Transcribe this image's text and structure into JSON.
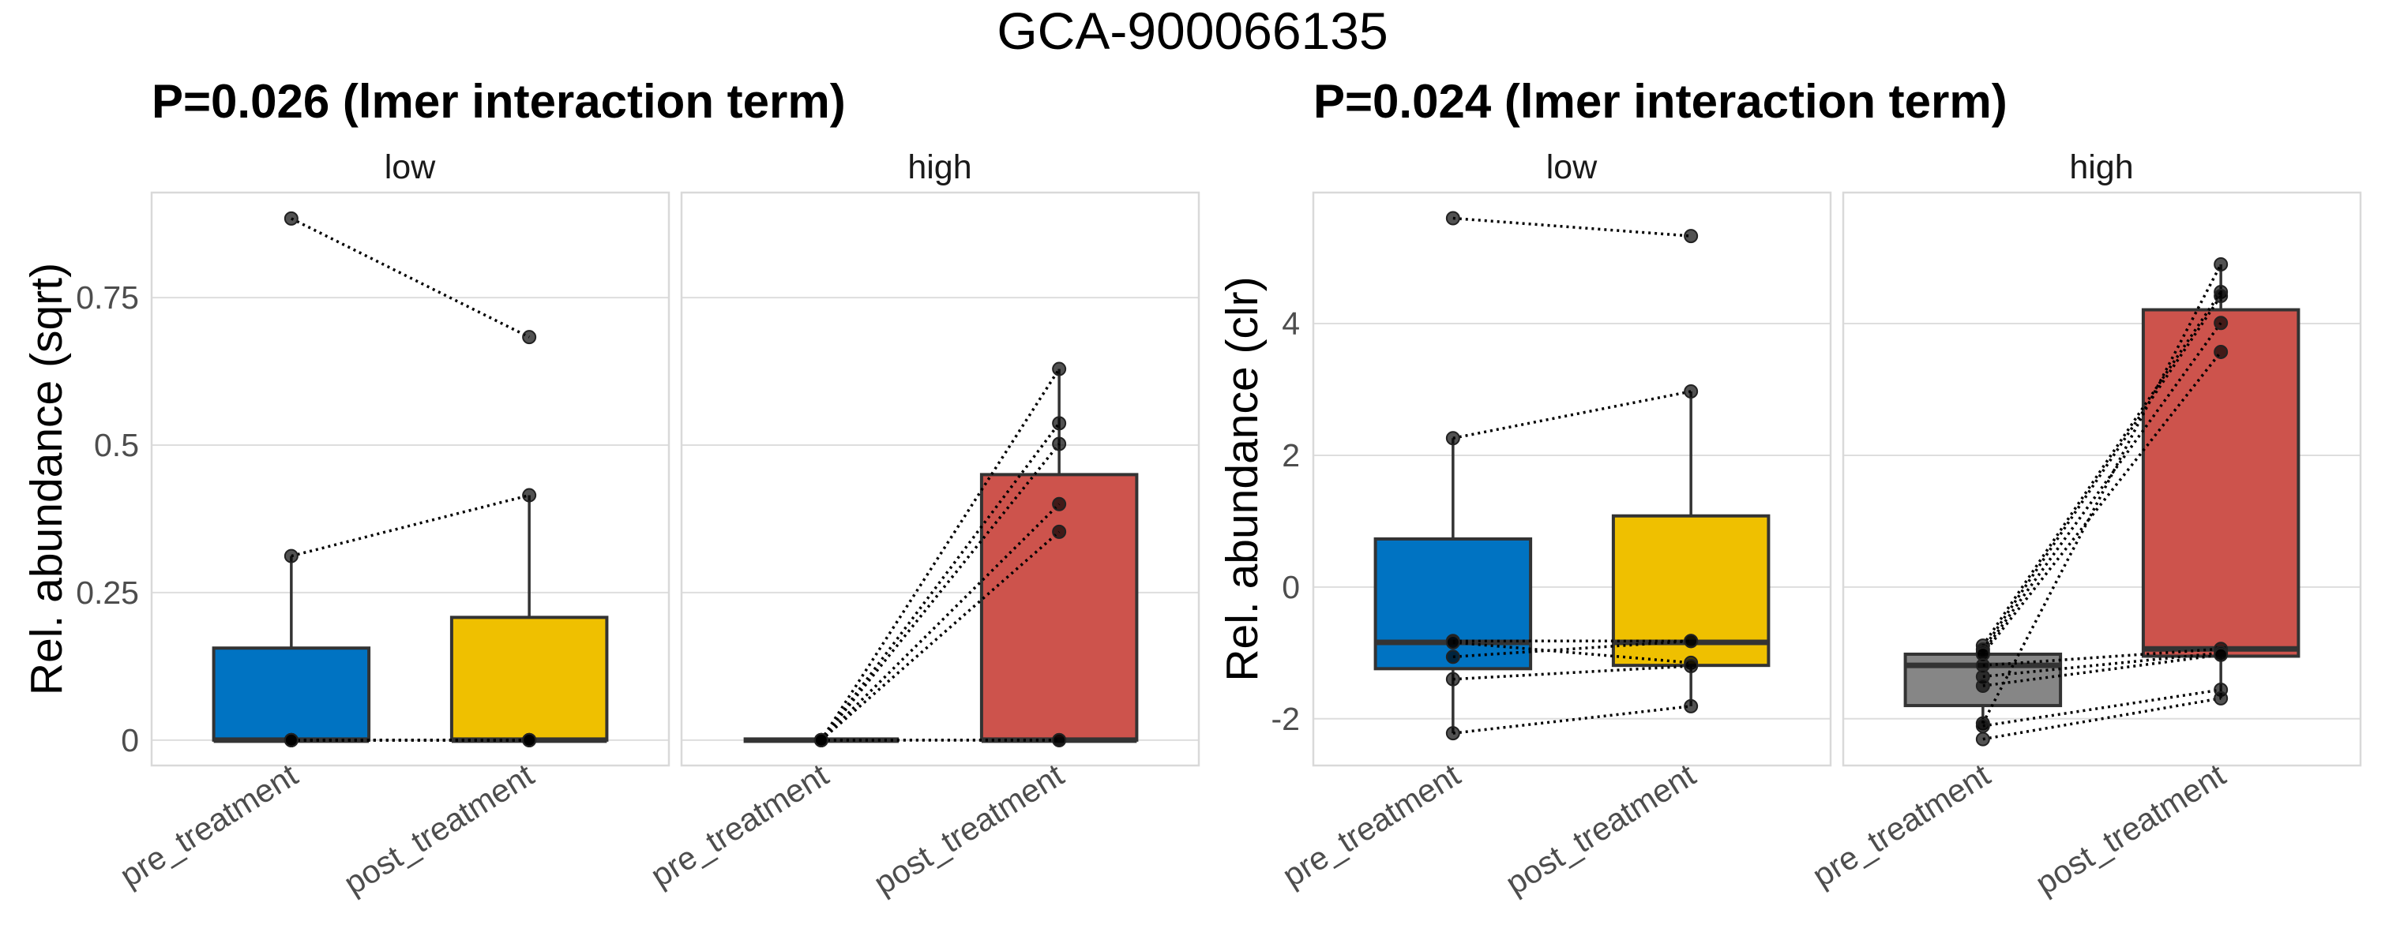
{
  "figure": {
    "title": "GCA-900066135"
  },
  "chart_data": [
    {
      "type": "box",
      "title": "P=0.026 (lmer interaction term)",
      "ylabel": "Rel. abundance (sqrt)",
      "xlabel": "",
      "ylim": [
        -0.043,
        0.928
      ],
      "yticks": [
        0,
        0.25,
        0.5,
        0.75
      ],
      "ytick_labels": [
        "0",
        "0.25",
        "0.5",
        "0.75"
      ],
      "grid": true,
      "categories": [
        "pre_treatment",
        "post_treatment"
      ],
      "facets": [
        {
          "label": "low",
          "boxes": [
            {
              "category": "pre_treatment",
              "color": "#0073C2",
              "whisker_low": 0,
              "q1": 0,
              "median": 0,
              "q3": 0.156,
              "whisker_high": 0.312
            },
            {
              "category": "post_treatment",
              "color": "#EFC000",
              "whisker_low": 0,
              "q1": 0,
              "median": 0,
              "q3": 0.208,
              "whisker_high": 0.415
            }
          ],
          "pairs": [
            [
              0.884,
              0.683
            ],
            [
              0.312,
              0.415
            ],
            [
              0,
              0
            ],
            [
              0,
              0
            ],
            [
              0,
              0
            ],
            [
              0,
              0
            ],
            [
              0,
              0
            ]
          ]
        },
        {
          "label": "high",
          "boxes": [
            {
              "category": "pre_treatment",
              "color": "#868686",
              "whisker_low": 0,
              "q1": 0,
              "median": 0,
              "q3": 0,
              "whisker_high": 0
            },
            {
              "category": "post_treatment",
              "color": "#CD534C",
              "whisker_low": 0,
              "q1": 0,
              "median": 0,
              "q3": 0.45,
              "whisker_high": 0.629
            }
          ],
          "pairs": [
            [
              0,
              0.629
            ],
            [
              0,
              0.537
            ],
            [
              0,
              0.502
            ],
            [
              0,
              0.4
            ],
            [
              0,
              0.353
            ],
            [
              0,
              0
            ],
            [
              0,
              0
            ]
          ]
        }
      ]
    },
    {
      "type": "box",
      "title": "P=0.024 (lmer interaction term)",
      "ylabel": "Rel. abundance (clr)",
      "xlabel": "",
      "ylim": [
        -2.71,
        5.99
      ],
      "yticks": [
        -2,
        0,
        2,
        4
      ],
      "ytick_labels": [
        "-2",
        "0",
        "2",
        "4"
      ],
      "grid": true,
      "categories": [
        "pre_treatment",
        "post_treatment"
      ],
      "facets": [
        {
          "label": "low",
          "boxes": [
            {
              "category": "pre_treatment",
              "color": "#0073C2",
              "whisker_low": -2.22,
              "q1": -1.24,
              "median": -0.84,
              "q3": 0.73,
              "whisker_high": 2.26
            },
            {
              "category": "post_treatment",
              "color": "#EFC000",
              "whisker_low": -1.81,
              "q1": -1.19,
              "median": -0.84,
              "q3": 1.08,
              "whisker_high": 2.97
            }
          ],
          "pairs": [
            [
              5.6,
              5.33
            ],
            [
              2.26,
              2.97
            ],
            [
              -0.82,
              -0.82
            ],
            [
              -0.84,
              -1.15
            ],
            [
              -1.06,
              -0.82
            ],
            [
              -1.4,
              -1.2
            ],
            [
              -2.22,
              -1.81
            ]
          ]
        },
        {
          "label": "high",
          "boxes": [
            {
              "category": "pre_treatment",
              "color": "#868686",
              "whisker_low": -2.07,
              "q1": -1.8,
              "median": -1.19,
              "q3": -1.02,
              "whisker_high": -0.89
            },
            {
              "category": "post_treatment",
              "color": "#CD534C",
              "whisker_low": -1.69,
              "q1": -1.05,
              "median": -0.94,
              "q3": 4.21,
              "whisker_high": 4.9
            }
          ],
          "pairs": [
            [
              -2.07,
              4.9
            ],
            [
              -0.89,
              4.48
            ],
            [
              -0.95,
              4.42
            ],
            [
              -0.99,
              4.01
            ],
            [
              -1.02,
              3.57
            ],
            [
              -1.19,
              -0.94
            ],
            [
              -1.36,
              -1.0
            ],
            [
              -1.5,
              -1.03
            ],
            [
              -2.11,
              -1.56
            ],
            [
              -2.31,
              -1.69
            ]
          ]
        }
      ]
    }
  ]
}
